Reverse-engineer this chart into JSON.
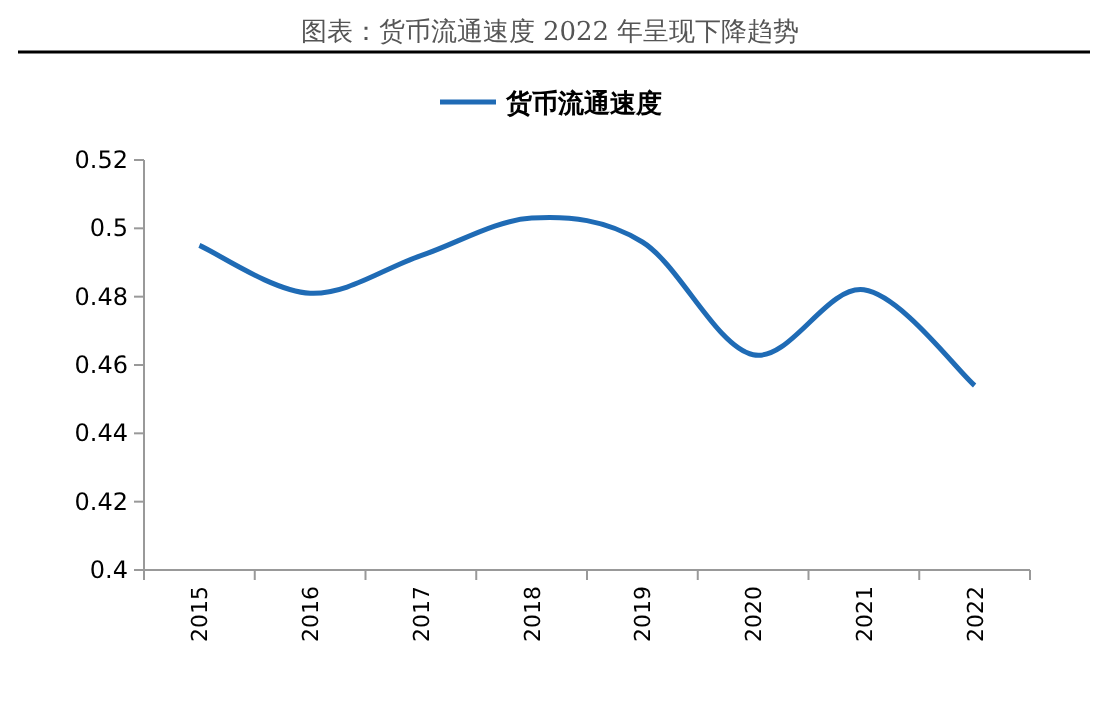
{
  "chart_data": {
    "type": "line",
    "title": "图表：货币流通速度 2022 年呈现下降趋势",
    "categories": [
      "2015",
      "2016",
      "2017",
      "2018",
      "2019",
      "2020",
      "2021",
      "2022"
    ],
    "series": [
      {
        "name": "货币流通速度",
        "color": "#1f6bb5",
        "values": [
          0.495,
          0.481,
          0.492,
          0.503,
          0.496,
          0.463,
          0.482,
          0.454
        ]
      }
    ],
    "ylim": [
      0.4,
      0.52
    ],
    "yticks": [
      0.4,
      0.42,
      0.44,
      0.46,
      0.48,
      0.5,
      0.52
    ],
    "legend": "top",
    "grid": false,
    "marker": "none",
    "line_style": "solid"
  }
}
